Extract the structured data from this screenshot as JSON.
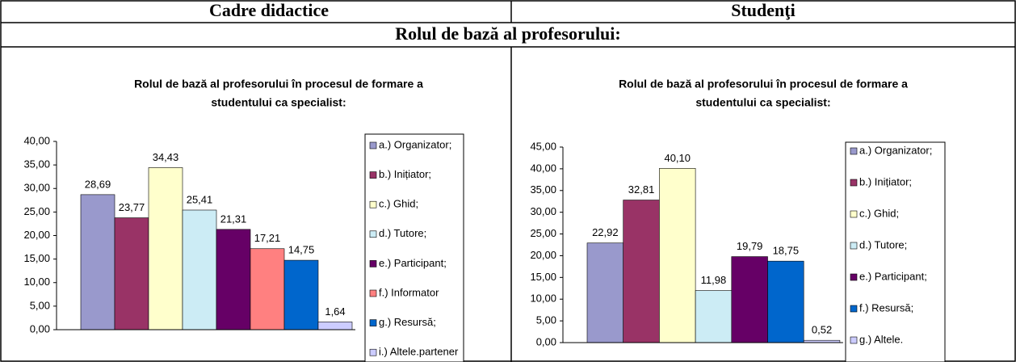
{
  "header": {
    "left": "Cadre didactice",
    "right": "Studenţi",
    "subtitle": "Rolul de bază al profesorului:"
  },
  "chart_data": [
    {
      "type": "bar",
      "title": [
        "Rolul de bază al profesorului în procesul de formare a",
        "studentului ca specialist:"
      ],
      "categories": [
        "a.) Organizator;",
        "b.) Inițiator;",
        "c.) Ghid;",
        "d.) Tutore;",
        "e.) Participant;",
        "f.) Informator",
        "g.) Resursă;",
        "i.) Altele.partener"
      ],
      "values": [
        28.69,
        23.77,
        34.43,
        25.41,
        21.31,
        17.21,
        14.75,
        1.64
      ],
      "value_labels": [
        "28,69",
        "23,77",
        "34,43",
        "25,41",
        "21,31",
        "17,21",
        "14,75",
        "1,64"
      ],
      "colors": [
        "#9999cc",
        "#993366",
        "#ffffcc",
        "#ccecf5",
        "#660066",
        "#ff8080",
        "#0066cc",
        "#ccccff"
      ],
      "ylim": [
        0,
        40
      ],
      "yticks": [
        {
          "value": 0,
          "label": "0,00"
        },
        {
          "value": 5,
          "label": "5,00"
        },
        {
          "value": 10,
          "label": "10,00"
        },
        {
          "value": 15,
          "label": "15,00"
        },
        {
          "value": 20,
          "label": "20,00"
        },
        {
          "value": 25,
          "label": "25,00"
        },
        {
          "value": 30,
          "label": "30,00"
        },
        {
          "value": 35,
          "label": "35,00"
        },
        {
          "value": 40,
          "label": "40,00"
        }
      ]
    },
    {
      "type": "bar",
      "title": [
        "Rolul de bază al profesorului în procesul de formare a",
        "studentului ca specialist:"
      ],
      "categories": [
        "a.) Organizator;",
        "b.) Inițiator;",
        "c.) Ghid;",
        "d.) Tutore;",
        "e.) Participant;",
        "f.) Resursă;",
        "g.) Altele."
      ],
      "values": [
        22.92,
        32.81,
        40.1,
        11.98,
        19.79,
        18.75,
        0.52
      ],
      "value_labels": [
        "22,92",
        "32,81",
        "40,10",
        "11,98",
        "19,79",
        "18,75",
        "0,52"
      ],
      "colors": [
        "#9999cc",
        "#993366",
        "#ffffcc",
        "#ccecf5",
        "#660066",
        "#0066cc",
        "#ccccff"
      ],
      "ylim": [
        0,
        45
      ],
      "yticks": [
        {
          "value": 0,
          "label": "0,00"
        },
        {
          "value": 5,
          "label": "5,00"
        },
        {
          "value": 10,
          "label": "10,00"
        },
        {
          "value": 15,
          "label": "15,00"
        },
        {
          "value": 20,
          "label": "20,00"
        },
        {
          "value": 25,
          "label": "25,00"
        },
        {
          "value": 30,
          "label": "30,00"
        },
        {
          "value": 35,
          "label": "35,00"
        },
        {
          "value": 40,
          "label": "40,00"
        },
        {
          "value": 45,
          "label": "45,00"
        }
      ]
    }
  ]
}
